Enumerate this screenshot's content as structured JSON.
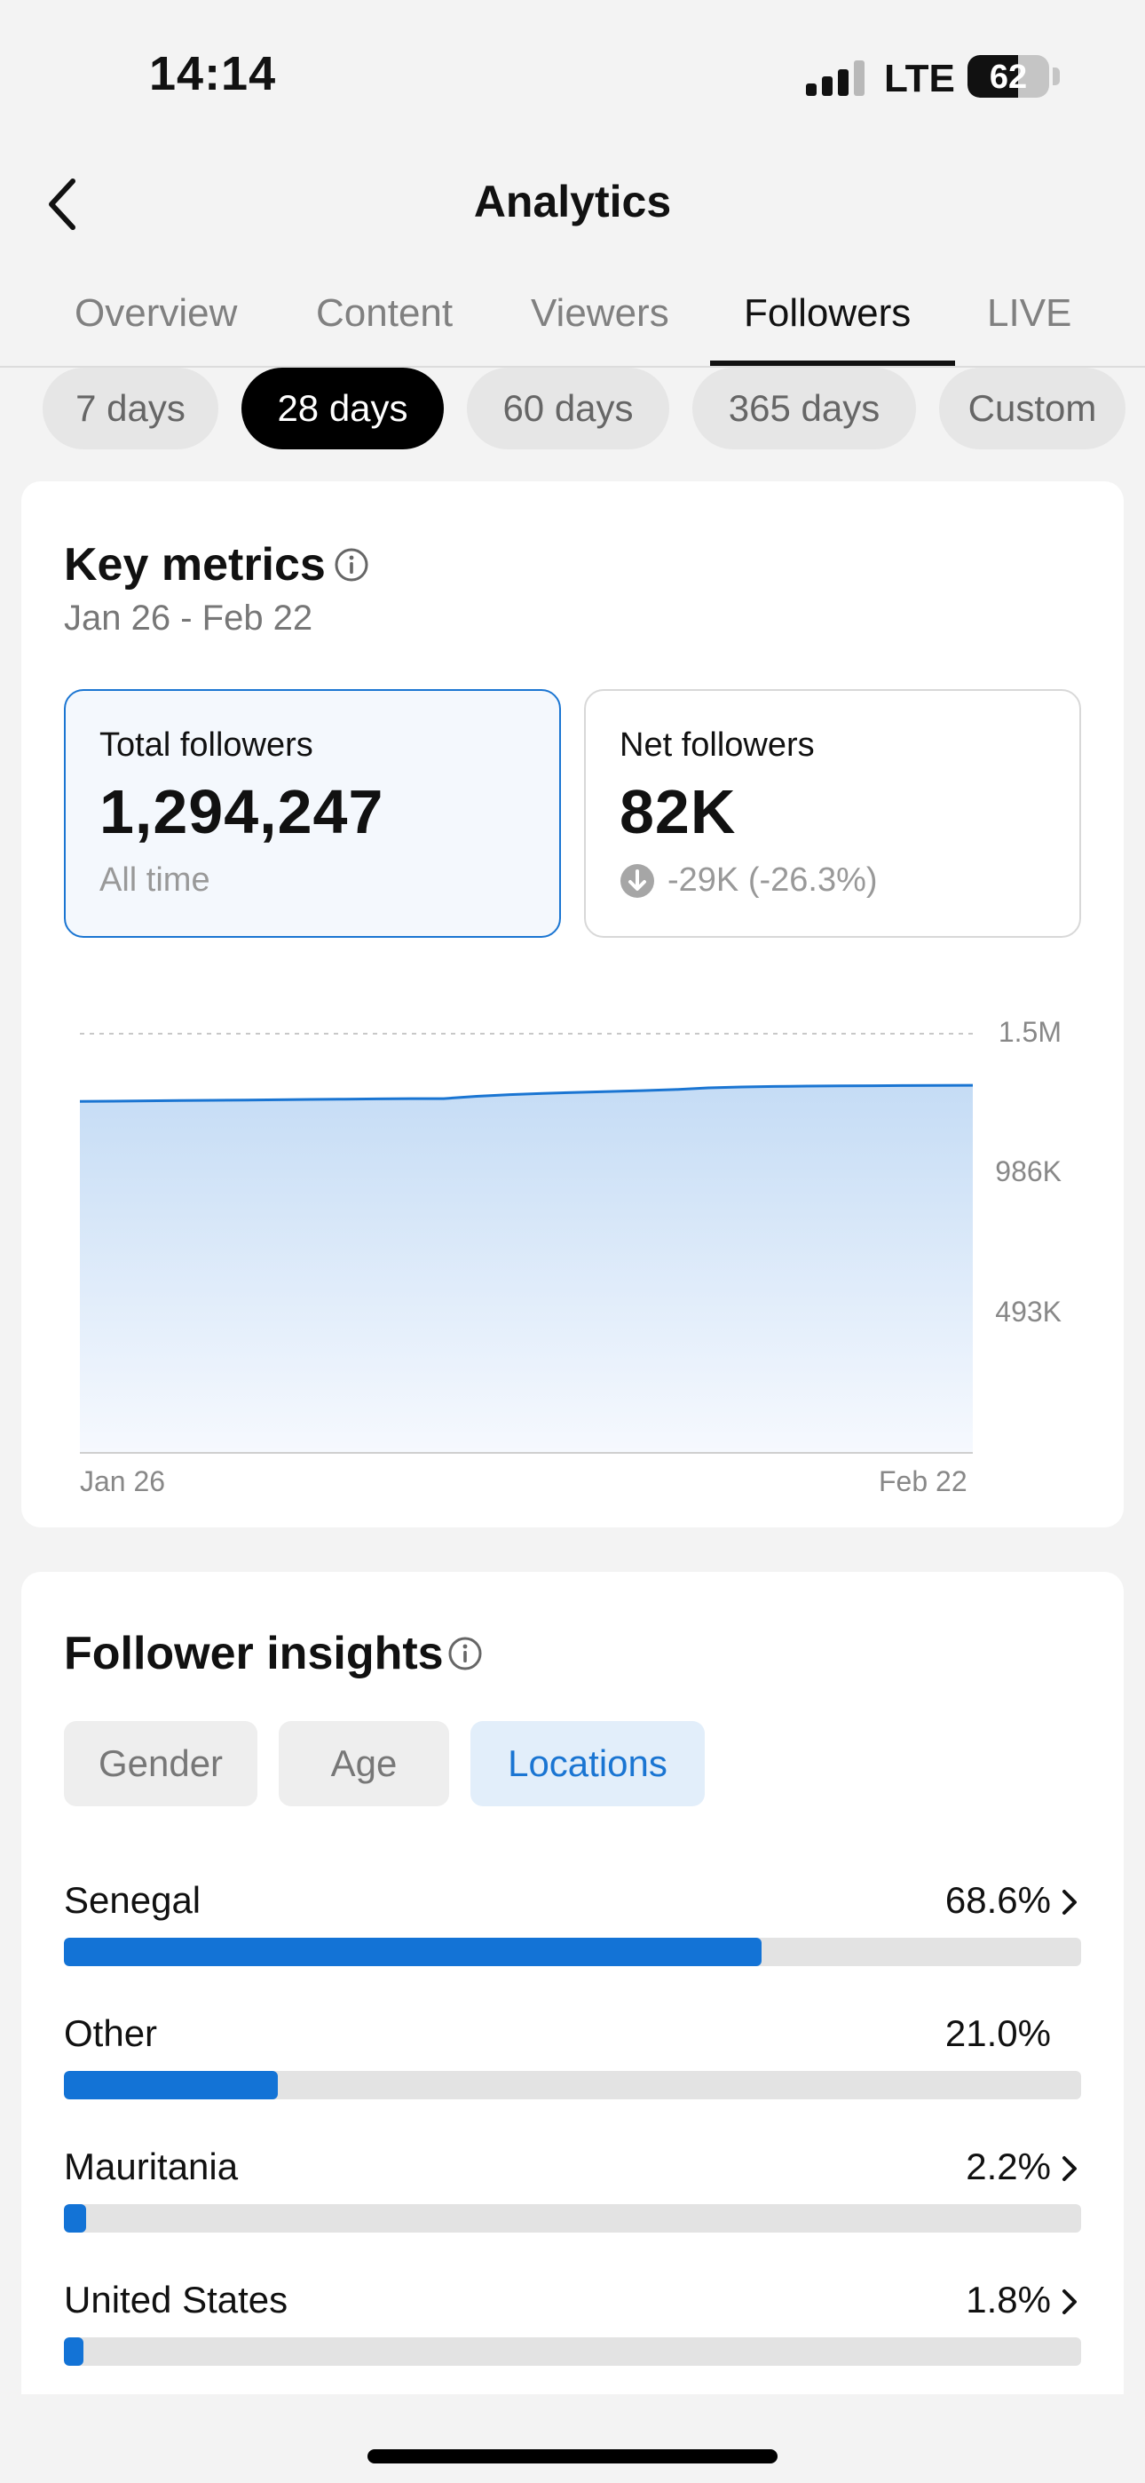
{
  "status_bar": {
    "time": "14:14",
    "network": "LTE",
    "battery": "62",
    "battery_level": 0.62
  },
  "header": {
    "title": "Analytics",
    "back_icon": "chevron-left-icon"
  },
  "tabs": [
    {
      "label": "Overview",
      "active": false
    },
    {
      "label": "Content",
      "active": false
    },
    {
      "label": "Viewers",
      "active": false
    },
    {
      "label": "Followers",
      "active": true
    },
    {
      "label": "LIVE",
      "active": false
    }
  ],
  "ranges": [
    {
      "label": "7 days",
      "active": false
    },
    {
      "label": "28 days",
      "active": true
    },
    {
      "label": "60 days",
      "active": false
    },
    {
      "label": "365 days",
      "active": false
    },
    {
      "label": "Custom",
      "active": false
    }
  ],
  "key_metrics": {
    "title": "Key metrics",
    "info_icon": "info-icon",
    "date_range": "Jan 26 - Feb 22",
    "total": {
      "label": "Total followers",
      "value": "1,294,247",
      "sub": "All time"
    },
    "net": {
      "label": "Net followers",
      "value": "82K",
      "delta": "-29K (-26.3%)",
      "delta_icon": "arrow-down-circle-icon"
    }
  },
  "chart_data": {
    "type": "area",
    "x_labels": [
      "Jan 26",
      "Feb 22"
    ],
    "y_ticks": [
      "1.5M",
      "986K",
      "493K"
    ],
    "ylim": [
      0,
      1479000
    ],
    "grid": true,
    "color": "#1a75d2",
    "values": [
      1240000,
      1241000,
      1242000,
      1243000,
      1244000,
      1245000,
      1246000,
      1247000,
      1248000,
      1249000,
      1250000,
      1250000,
      1258000,
      1264000,
      1268000,
      1272000,
      1275000,
      1278000,
      1282000,
      1288000,
      1291000,
      1293000,
      1294000,
      1295000,
      1295500,
      1296000,
      1296500,
      1297000
    ]
  },
  "insights": {
    "title": "Follower insights",
    "info_icon": "info-icon",
    "segments": [
      {
        "label": "Gender",
        "active": false
      },
      {
        "label": "Age",
        "active": false
      },
      {
        "label": "Locations",
        "active": true
      }
    ],
    "locations": [
      {
        "name": "Senegal",
        "percent_label": "68.6%",
        "fraction": 0.686,
        "chevron": true
      },
      {
        "name": "Other",
        "percent_label": "21.0%",
        "fraction": 0.21,
        "chevron": false
      },
      {
        "name": "Mauritania",
        "percent_label": "2.2%",
        "fraction": 0.022,
        "chevron": true
      },
      {
        "name": "United States",
        "percent_label": "1.8%",
        "fraction": 0.018,
        "chevron": true
      }
    ]
  },
  "colors": {
    "accent": "#1a75d2",
    "bar": "#1373d6",
    "track": "#e3e3e3",
    "background": "#f3f3f3"
  }
}
